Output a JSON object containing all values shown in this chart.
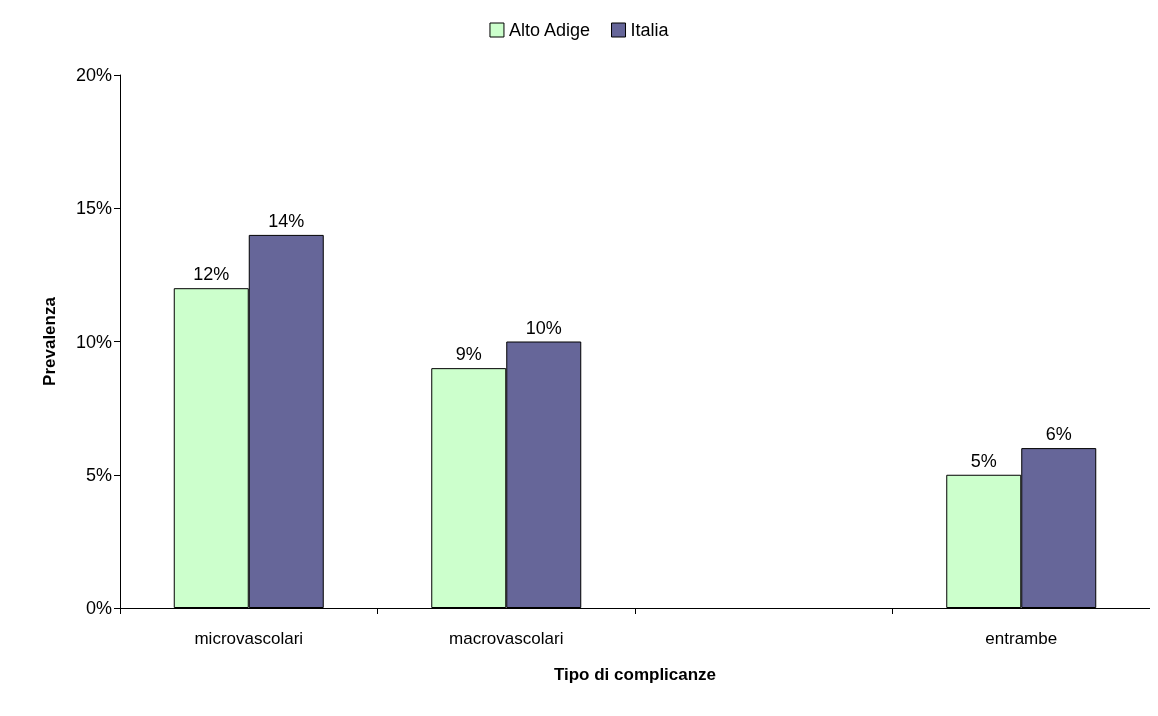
{
  "chart_data": {
    "type": "bar",
    "xlabel": "Tipo di complicanze",
    "ylabel": "Prevalenza",
    "categories": [
      "microvascolari",
      "macrovascolari",
      null,
      "entrambe"
    ],
    "series": [
      {
        "name": "Alto Adige",
        "color": "#ccffcc",
        "values": [
          12,
          9,
          null,
          5
        ],
        "value_labels": [
          "12%",
          "9%",
          null,
          "5%"
        ]
      },
      {
        "name": "Italia",
        "color": "#666699",
        "values": [
          14,
          10,
          null,
          6
        ],
        "value_labels": [
          "14%",
          "10%",
          null,
          "6%"
        ]
      }
    ],
    "ylim": [
      0,
      20
    ],
    "yticks": [
      {
        "value": 0,
        "label": "0%"
      },
      {
        "value": 5,
        "label": "5%"
      },
      {
        "value": 10,
        "label": "10%"
      },
      {
        "value": 15,
        "label": "15%"
      },
      {
        "value": 20,
        "label": "20%"
      }
    ],
    "grid": false,
    "legend": "top"
  }
}
